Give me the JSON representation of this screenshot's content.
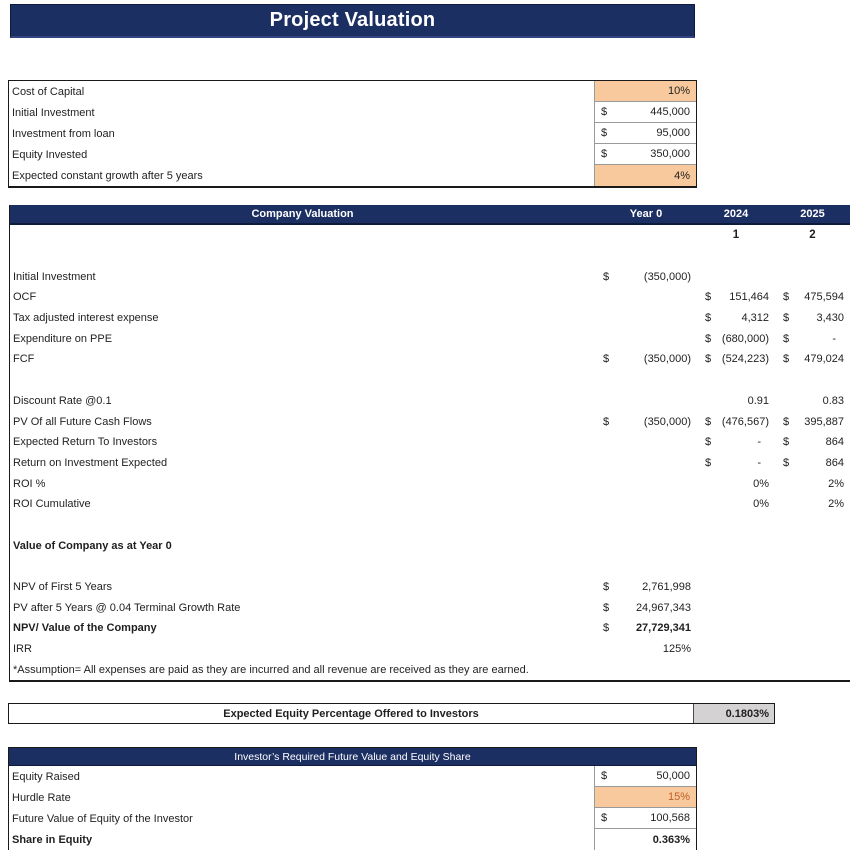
{
  "title": {
    "text": "Project Valuation"
  },
  "colors": {
    "header_navy": "#1c2f63",
    "input_highlight": "#f8c99c",
    "result_gray": "#d4d2d2",
    "hurdle_text": "#c05f2a"
  },
  "assumptions": {
    "rows": [
      {
        "label": "Cost of Capital",
        "cur": "",
        "value": "10%",
        "highlight": true
      },
      {
        "label": "Initial Investment",
        "cur": "$",
        "value": "445,000"
      },
      {
        "label": "Investment from loan",
        "cur": "$",
        "value": "95,000"
      },
      {
        "label": "Equity Invested",
        "cur": "$",
        "value": "350,000"
      },
      {
        "label": "Expected constant growth after 5 years",
        "cur": "",
        "value": "4%",
        "highlight": true
      }
    ]
  },
  "valuation": {
    "title": "Company Valuation",
    "columns": [
      "Year 0",
      "2024",
      "2025"
    ],
    "period_numbers": [
      "1",
      "2"
    ],
    "rows": [
      {
        "label": "",
        "cells": [
          null,
          null,
          null
        ]
      },
      {
        "label": "Initial Investment",
        "cells": [
          {
            "c": "$",
            "v": "(350,000)"
          },
          null,
          null
        ]
      },
      {
        "label": "OCF",
        "cells": [
          null,
          {
            "c": "$",
            "v": "151,464"
          },
          {
            "c": "$",
            "v": "475,594"
          }
        ]
      },
      {
        "label": "Tax adjusted interest expense",
        "cells": [
          null,
          {
            "c": "$",
            "v": "4,312"
          },
          {
            "c": "$",
            "v": "3,430"
          }
        ]
      },
      {
        "label": "Expenditure on PPE",
        "cells": [
          null,
          {
            "c": "$",
            "v": "(680,000)"
          },
          {
            "c": "$",
            "v": "-"
          }
        ]
      },
      {
        "label": "FCF",
        "cells": [
          {
            "c": "$",
            "v": "(350,000)"
          },
          {
            "c": "$",
            "v": "(524,223)"
          },
          {
            "c": "$",
            "v": "479,024"
          }
        ]
      },
      {
        "label": "",
        "cells": [
          null,
          null,
          null
        ]
      },
      {
        "label": "Discount Rate @0.1",
        "cells": [
          null,
          {
            "c": "",
            "v": "0.91"
          },
          {
            "c": "",
            "v": "0.83"
          }
        ]
      },
      {
        "label": "PV Of all Future Cash Flows",
        "cells": [
          {
            "c": "$",
            "v": "(350,000)"
          },
          {
            "c": "$",
            "v": "(476,567)"
          },
          {
            "c": "$",
            "v": "395,887"
          }
        ]
      },
      {
        "label": "Expected Return To Investors",
        "cells": [
          null,
          {
            "c": "$",
            "v": "-"
          },
          {
            "c": "$",
            "v": "864"
          }
        ]
      },
      {
        "label": "Return on Investment Expected",
        "cells": [
          null,
          {
            "c": "$",
            "v": "-"
          },
          {
            "c": "$",
            "v": "864"
          }
        ]
      },
      {
        "label": "ROI %",
        "cells": [
          null,
          {
            "c": "",
            "v": "0%"
          },
          {
            "c": "",
            "v": "2%"
          }
        ]
      },
      {
        "label": "ROI Cumulative",
        "cells": [
          null,
          {
            "c": "",
            "v": "0%"
          },
          {
            "c": "",
            "v": "2%"
          }
        ]
      },
      {
        "label": "",
        "cells": [
          null,
          null,
          null
        ]
      },
      {
        "label": "Value of Company as at Year 0",
        "bold": true,
        "cells": [
          null,
          null,
          null
        ]
      },
      {
        "label": "",
        "cells": [
          null,
          null,
          null
        ]
      },
      {
        "label": "NPV of First 5 Years",
        "cells": [
          {
            "c": "$",
            "v": "2,761,998"
          },
          null,
          null
        ]
      },
      {
        "label": "PV after 5 Years @ 0.04 Terminal Growth Rate",
        "cells": [
          {
            "c": "$",
            "v": "24,967,343"
          },
          null,
          null
        ]
      },
      {
        "label": "NPV/ Value of the Company",
        "bold": true,
        "cells": [
          {
            "c": "$",
            "v": "27,729,341",
            "bold": true
          },
          null,
          null
        ]
      },
      {
        "label": "IRR",
        "cells": [
          {
            "c": "",
            "v": "125%"
          },
          null,
          null
        ]
      },
      {
        "label": "*Assumption= All expenses are paid as they are incurred and all revenue are received as they are earned.",
        "cells": [
          null,
          null,
          null
        ]
      }
    ]
  },
  "equity_offer": {
    "label": "Expected Equity Percentage Offered to Investors",
    "value": "0.1803%"
  },
  "investor": {
    "title": "Investor’s Required Future Value and Equity Share",
    "rows": [
      {
        "label": "Equity Raised",
        "cur": "$",
        "value": "50,000"
      },
      {
        "label": "Hurdle Rate",
        "cur": "",
        "value": "15%",
        "highlight": true,
        "accent_text": true
      },
      {
        "label": "Future Value of Equity of the Investor",
        "cur": "$",
        "value": "100,568"
      },
      {
        "label": "Share in Equity",
        "cur": "",
        "value": "0.363%",
        "bold": true
      }
    ]
  }
}
